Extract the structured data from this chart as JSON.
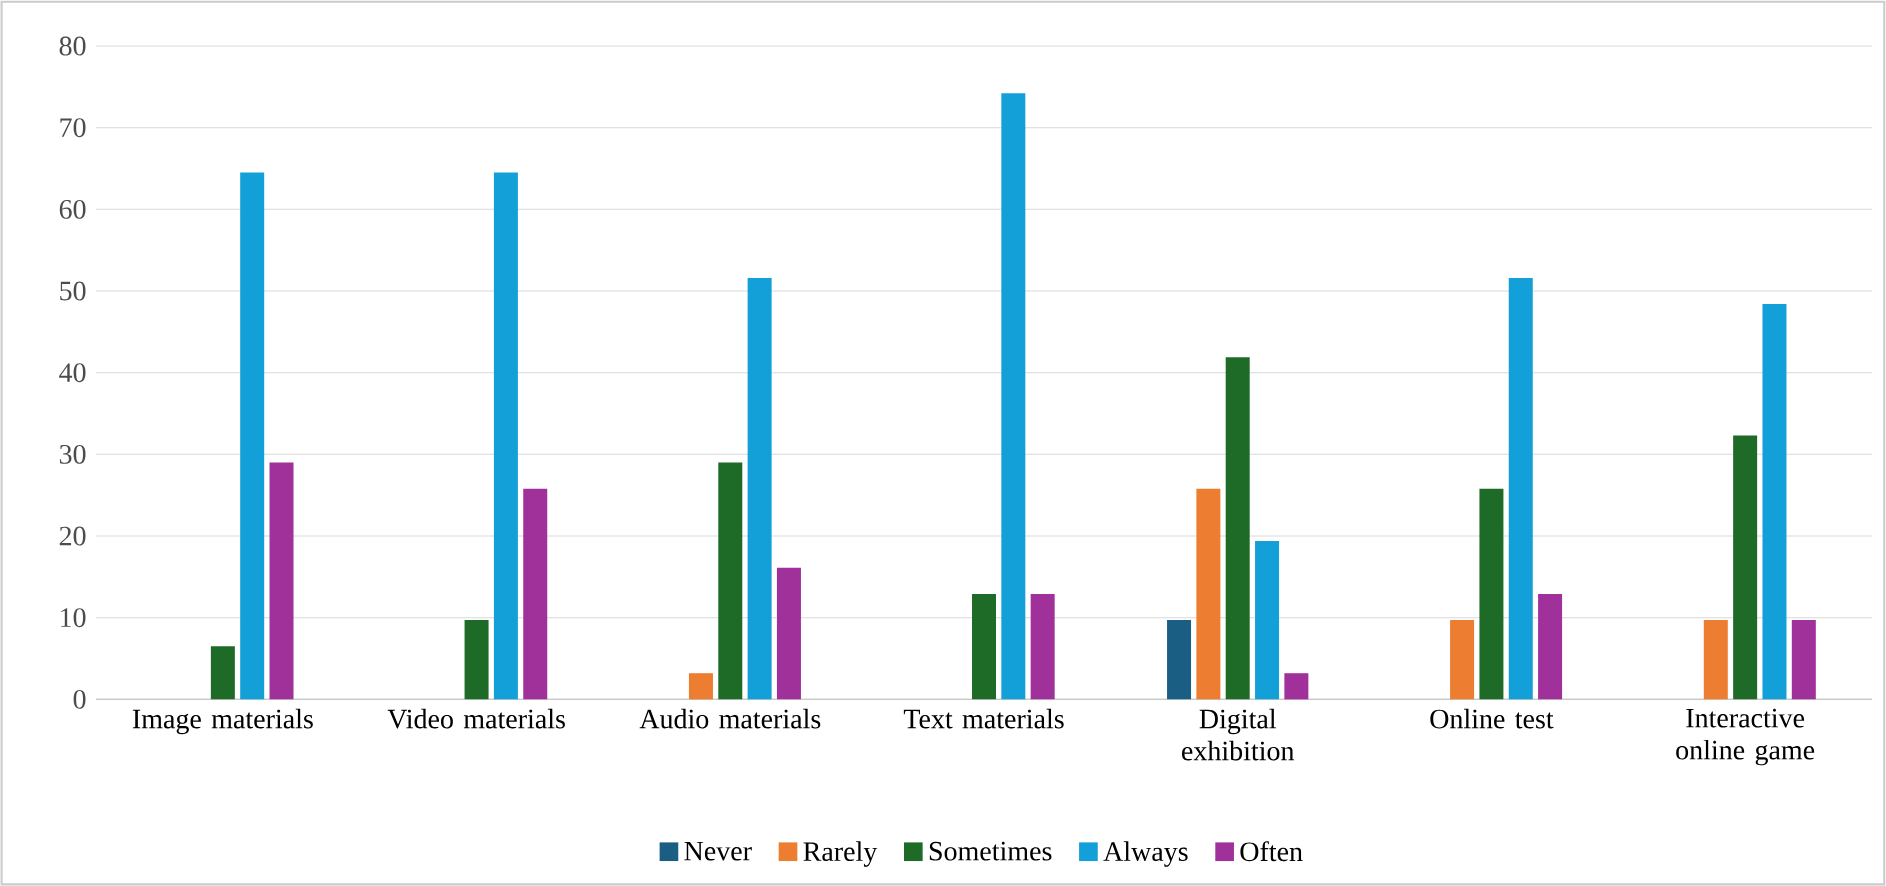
{
  "chart_data": {
    "type": "bar",
    "categories": [
      "Image materials",
      "Video materials",
      "Audio materials",
      "Text materials",
      "Digital exhibition",
      "Online test",
      "Interactive online game"
    ],
    "series": [
      {
        "name": "Never",
        "color": "#1b5e84",
        "values": [
          0,
          0,
          0,
          0,
          9.7,
          0,
          0
        ]
      },
      {
        "name": "Rarely",
        "color": "#ed7d31",
        "values": [
          0,
          0,
          3.2,
          0,
          25.8,
          9.7,
          9.7
        ]
      },
      {
        "name": "Sometimes",
        "color": "#1e6b28",
        "values": [
          6.5,
          9.7,
          29,
          12.9,
          41.9,
          25.8,
          32.3
        ]
      },
      {
        "name": "Always",
        "color": "#13a0d8",
        "values": [
          64.5,
          64.5,
          51.6,
          74.2,
          19.4,
          51.6,
          48.4
        ]
      },
      {
        "name": "Often",
        "color": "#a0309a",
        "values": [
          29,
          25.8,
          16.1,
          12.9,
          3.2,
          12.9,
          9.7
        ]
      }
    ],
    "ylim": [
      0,
      80
    ],
    "yticks": [
      0,
      10,
      20,
      30,
      40,
      50,
      60,
      70,
      80
    ],
    "grid": "y",
    "legend": "bottom"
  }
}
